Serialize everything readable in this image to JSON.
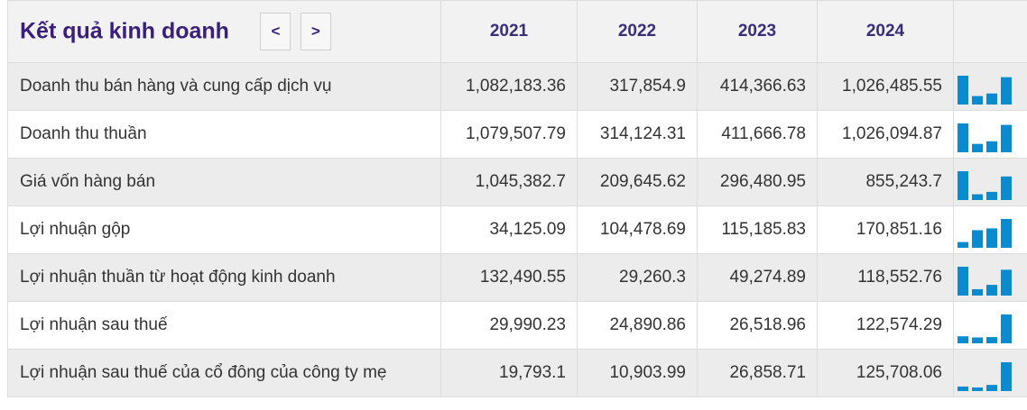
{
  "title": "Kết quả kinh doanh",
  "nav": {
    "prev": "<",
    "next": ">"
  },
  "years": [
    "2021",
    "2022",
    "2023",
    "2024"
  ],
  "bar_color": "#0a8bd0",
  "rows": [
    {
      "label": "Doanh thu bán hàng và cung cấp dịch vụ",
      "values": [
        "1,082,183.36",
        "317,854.9",
        "414,366.63",
        "1,026,485.55"
      ]
    },
    {
      "label": "Doanh thu thuần",
      "values": [
        "1,079,507.79",
        "314,124.31",
        "411,666.78",
        "1,026,094.87"
      ]
    },
    {
      "label": "Giá vốn hàng bán",
      "values": [
        "1,045,382.7",
        "209,645.62",
        "296,480.95",
        "855,243.7"
      ]
    },
    {
      "label": "Lợi nhuận gộp",
      "values": [
        "34,125.09",
        "104,478.69",
        "115,185.83",
        "170,851.16"
      ]
    },
    {
      "label": "Lợi nhuận thuần từ hoạt động kinh doanh",
      "values": [
        "132,490.55",
        "29,260.3",
        "49,274.89",
        "118,552.76"
      ]
    },
    {
      "label": "Lợi nhuận sau thuế",
      "values": [
        "29,990.23",
        "24,890.86",
        "26,518.96",
        "122,574.29"
      ]
    },
    {
      "label": "Lợi nhuận sau thuế của cổ đông của công ty mẹ",
      "values": [
        "19,793.1",
        "10,903.99",
        "26,858.71",
        "125,708.06"
      ]
    }
  ]
}
